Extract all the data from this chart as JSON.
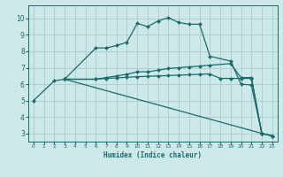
{
  "xlabel": "Humidex (Indice chaleur)",
  "bg_color": "#cce8e8",
  "grid_color": "#aacccc",
  "line_color": "#1a6b6b",
  "xlim": [
    -0.5,
    23.5
  ],
  "ylim": [
    2.5,
    10.8
  ],
  "xticks": [
    0,
    1,
    2,
    3,
    4,
    5,
    6,
    7,
    8,
    9,
    10,
    11,
    12,
    13,
    14,
    15,
    16,
    17,
    18,
    19,
    20,
    21,
    22,
    23
  ],
  "yticks": [
    3,
    4,
    5,
    6,
    7,
    8,
    9,
    10
  ],
  "curves": [
    {
      "x": [
        0,
        2,
        3,
        6,
        7,
        8,
        9,
        10,
        11,
        12,
        13,
        14,
        15,
        16,
        17,
        19,
        20,
        21,
        22,
        23
      ],
      "y": [
        5.0,
        6.2,
        6.3,
        8.2,
        8.2,
        8.35,
        8.55,
        9.7,
        9.5,
        9.85,
        10.05,
        9.75,
        9.65,
        9.65,
        7.7,
        7.4,
        6.0,
        5.95,
        3.0,
        2.85
      ]
    },
    {
      "x": [
        3,
        6,
        7,
        8,
        9,
        10,
        11,
        12,
        13,
        14,
        15,
        16,
        17,
        19,
        20,
        21,
        22,
        23
      ],
      "y": [
        6.3,
        6.3,
        6.4,
        6.5,
        6.6,
        6.75,
        6.75,
        6.85,
        6.95,
        7.0,
        7.05,
        7.1,
        7.15,
        7.25,
        6.4,
        6.4,
        3.0,
        2.85
      ]
    },
    {
      "x": [
        3,
        6,
        7,
        8,
        9,
        10,
        11,
        12,
        13,
        14,
        15,
        16,
        17,
        18,
        19,
        20,
        21,
        22,
        23
      ],
      "y": [
        6.3,
        6.3,
        6.35,
        6.38,
        6.42,
        6.45,
        6.48,
        6.5,
        6.52,
        6.55,
        6.57,
        6.6,
        6.62,
        6.35,
        6.35,
        6.35,
        6.35,
        3.0,
        2.85
      ]
    },
    {
      "x": [
        3,
        22,
        23
      ],
      "y": [
        6.3,
        3.0,
        2.85
      ]
    }
  ],
  "marker": "D",
  "markersize": 2.0,
  "linewidth": 0.9
}
